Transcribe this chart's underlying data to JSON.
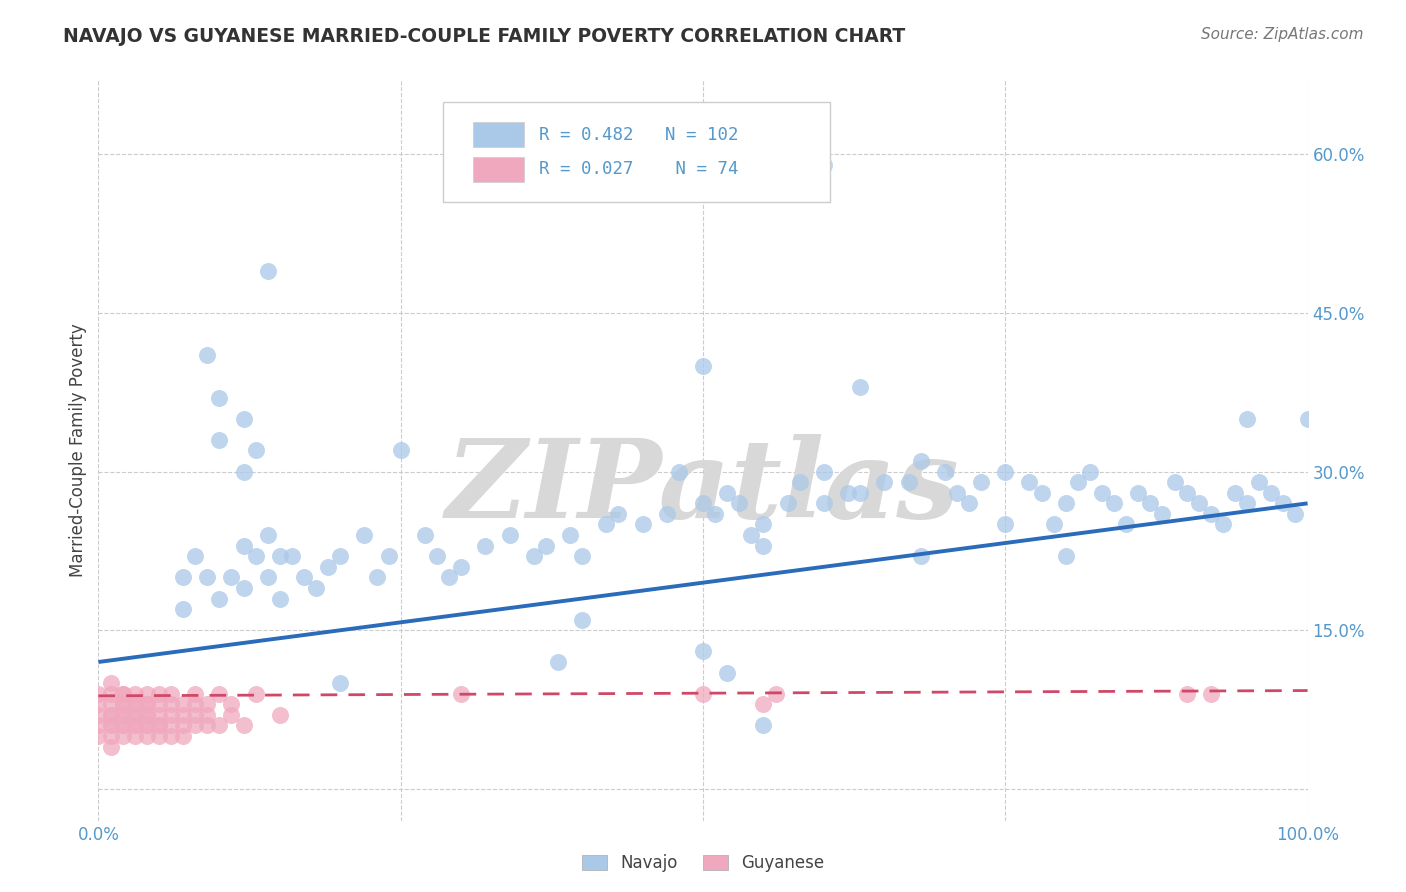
{
  "title": "NAVAJO VS GUYANESE MARRIED-COUPLE FAMILY POVERTY CORRELATION CHART",
  "source": "Source: ZipAtlas.com",
  "ylabel": "Married-Couple Family Poverty",
  "xlim": [
    0,
    1
  ],
  "ylim": [
    -0.03,
    0.67
  ],
  "yticks": [
    0.0,
    0.15,
    0.3,
    0.45,
    0.6
  ],
  "ytick_labels": [
    "",
    "15.0%",
    "30.0%",
    "45.0%",
    "60.0%"
  ],
  "xticks": [
    0.0,
    0.25,
    0.5,
    0.75,
    1.0
  ],
  "xtick_labels": [
    "0.0%",
    "",
    "",
    "",
    "100.0%"
  ],
  "navajo_R": 0.482,
  "navajo_N": 102,
  "guyanese_R": 0.027,
  "guyanese_N": 74,
  "navajo_color": "#aac8e8",
  "navajo_edge_color": "#90b8de",
  "navajo_line_color": "#2a6bba",
  "guyanese_color": "#f0a8be",
  "guyanese_edge_color": "#e090a8",
  "guyanese_line_color": "#d04868",
  "watermark": "ZIPatlas",
  "watermark_color": "#d8d8d8",
  "background_color": "#ffffff",
  "grid_color": "#cccccc",
  "title_color": "#333333",
  "axis_label_color": "#5599cc",
  "navajo_x": [
    0.14,
    0.09,
    0.1,
    0.1,
    0.12,
    0.12,
    0.13,
    0.14,
    0.15,
    0.07,
    0.07,
    0.08,
    0.09,
    0.1,
    0.11,
    0.12,
    0.12,
    0.13,
    0.14,
    0.15,
    0.16,
    0.17,
    0.18,
    0.19,
    0.2,
    0.22,
    0.23,
    0.24,
    0.25,
    0.27,
    0.28,
    0.3,
    0.32,
    0.34,
    0.36,
    0.37,
    0.39,
    0.4,
    0.42,
    0.43,
    0.45,
    0.47,
    0.48,
    0.5,
    0.51,
    0.52,
    0.53,
    0.54,
    0.55,
    0.57,
    0.58,
    0.6,
    0.6,
    0.62,
    0.63,
    0.65,
    0.67,
    0.68,
    0.7,
    0.71,
    0.72,
    0.73,
    0.75,
    0.77,
    0.78,
    0.79,
    0.8,
    0.81,
    0.82,
    0.83,
    0.84,
    0.85,
    0.86,
    0.87,
    0.88,
    0.89,
    0.9,
    0.91,
    0.92,
    0.93,
    0.94,
    0.95,
    0.96,
    0.97,
    0.98,
    0.99,
    1.0,
    0.5,
    0.63,
    0.4,
    0.38,
    0.29,
    0.2,
    0.5,
    0.52,
    0.55,
    0.68,
    0.75,
    0.8,
    0.55,
    0.6,
    0.95
  ],
  "navajo_y": [
    0.49,
    0.41,
    0.37,
    0.33,
    0.35,
    0.3,
    0.32,
    0.24,
    0.22,
    0.2,
    0.17,
    0.22,
    0.2,
    0.18,
    0.2,
    0.19,
    0.23,
    0.22,
    0.2,
    0.18,
    0.22,
    0.2,
    0.19,
    0.21,
    0.22,
    0.24,
    0.2,
    0.22,
    0.32,
    0.24,
    0.22,
    0.21,
    0.23,
    0.24,
    0.22,
    0.23,
    0.24,
    0.22,
    0.25,
    0.26,
    0.25,
    0.26,
    0.3,
    0.27,
    0.26,
    0.28,
    0.27,
    0.24,
    0.25,
    0.27,
    0.29,
    0.3,
    0.27,
    0.28,
    0.28,
    0.29,
    0.29,
    0.31,
    0.3,
    0.28,
    0.27,
    0.29,
    0.3,
    0.29,
    0.28,
    0.25,
    0.27,
    0.29,
    0.3,
    0.28,
    0.27,
    0.25,
    0.28,
    0.27,
    0.26,
    0.29,
    0.28,
    0.27,
    0.26,
    0.25,
    0.28,
    0.27,
    0.29,
    0.28,
    0.27,
    0.26,
    0.35,
    0.4,
    0.38,
    0.16,
    0.12,
    0.2,
    0.1,
    0.13,
    0.11,
    0.06,
    0.22,
    0.25,
    0.22,
    0.23,
    0.59,
    0.35
  ],
  "guyanese_x": [
    0.0,
    0.0,
    0.0,
    0.0,
    0.0,
    0.01,
    0.01,
    0.01,
    0.01,
    0.01,
    0.01,
    0.01,
    0.01,
    0.01,
    0.02,
    0.02,
    0.02,
    0.02,
    0.02,
    0.02,
    0.02,
    0.02,
    0.02,
    0.03,
    0.03,
    0.03,
    0.03,
    0.03,
    0.03,
    0.03,
    0.03,
    0.04,
    0.04,
    0.04,
    0.04,
    0.04,
    0.04,
    0.04,
    0.04,
    0.05,
    0.05,
    0.05,
    0.05,
    0.05,
    0.05,
    0.06,
    0.06,
    0.06,
    0.06,
    0.06,
    0.07,
    0.07,
    0.07,
    0.07,
    0.08,
    0.08,
    0.08,
    0.08,
    0.09,
    0.09,
    0.09,
    0.1,
    0.1,
    0.11,
    0.11,
    0.12,
    0.13,
    0.15,
    0.5,
    0.55,
    0.56,
    0.9,
    0.92,
    0.3
  ],
  "guyanese_y": [
    0.06,
    0.07,
    0.08,
    0.05,
    0.09,
    0.07,
    0.06,
    0.08,
    0.05,
    0.09,
    0.04,
    0.1,
    0.07,
    0.06,
    0.08,
    0.06,
    0.07,
    0.09,
    0.05,
    0.08,
    0.06,
    0.07,
    0.09,
    0.06,
    0.08,
    0.07,
    0.05,
    0.09,
    0.06,
    0.08,
    0.07,
    0.06,
    0.08,
    0.05,
    0.09,
    0.07,
    0.06,
    0.08,
    0.07,
    0.06,
    0.08,
    0.05,
    0.09,
    0.07,
    0.06,
    0.08,
    0.06,
    0.07,
    0.05,
    0.09,
    0.06,
    0.08,
    0.07,
    0.05,
    0.08,
    0.06,
    0.07,
    0.09,
    0.06,
    0.08,
    0.07,
    0.06,
    0.09,
    0.07,
    0.08,
    0.06,
    0.09,
    0.07,
    0.09,
    0.08,
    0.09,
    0.09,
    0.09,
    0.09
  ],
  "nav_line_x0": 0.0,
  "nav_line_y0": 0.12,
  "nav_line_x1": 1.0,
  "nav_line_y1": 0.27,
  "guy_line_x0": 0.0,
  "guy_line_y0": 0.088,
  "guy_line_x1": 1.0,
  "guy_line_y1": 0.093
}
